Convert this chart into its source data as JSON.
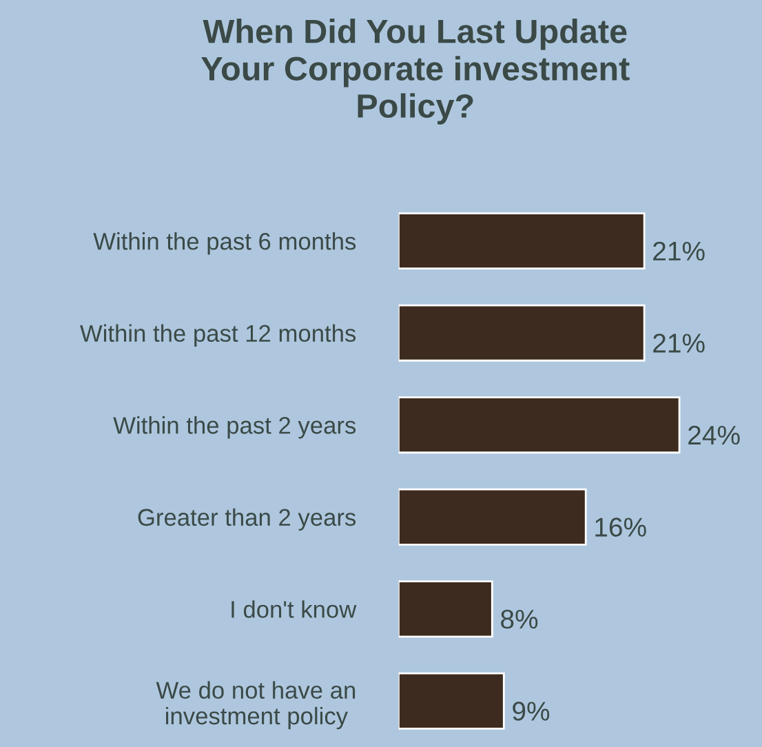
{
  "chart_data": {
    "type": "bar",
    "orientation": "horizontal",
    "title": "When Did You Last Update\nYour Corporate investment\nPolicy?",
    "categories": [
      "Within the past 6 months",
      "Within the past 12 months",
      "Within the past 2 years",
      "Greater than 2 years",
      "I don't know",
      "We do not have an\ninvestment policy"
    ],
    "values": [
      21,
      21,
      24,
      16,
      8,
      9
    ],
    "value_labels": [
      "21%",
      "21%",
      "24%",
      "16%",
      "8%",
      "9%"
    ],
    "color": "#3d2b1f",
    "tick_labels": "y",
    "grid": false,
    "legend": false
  }
}
